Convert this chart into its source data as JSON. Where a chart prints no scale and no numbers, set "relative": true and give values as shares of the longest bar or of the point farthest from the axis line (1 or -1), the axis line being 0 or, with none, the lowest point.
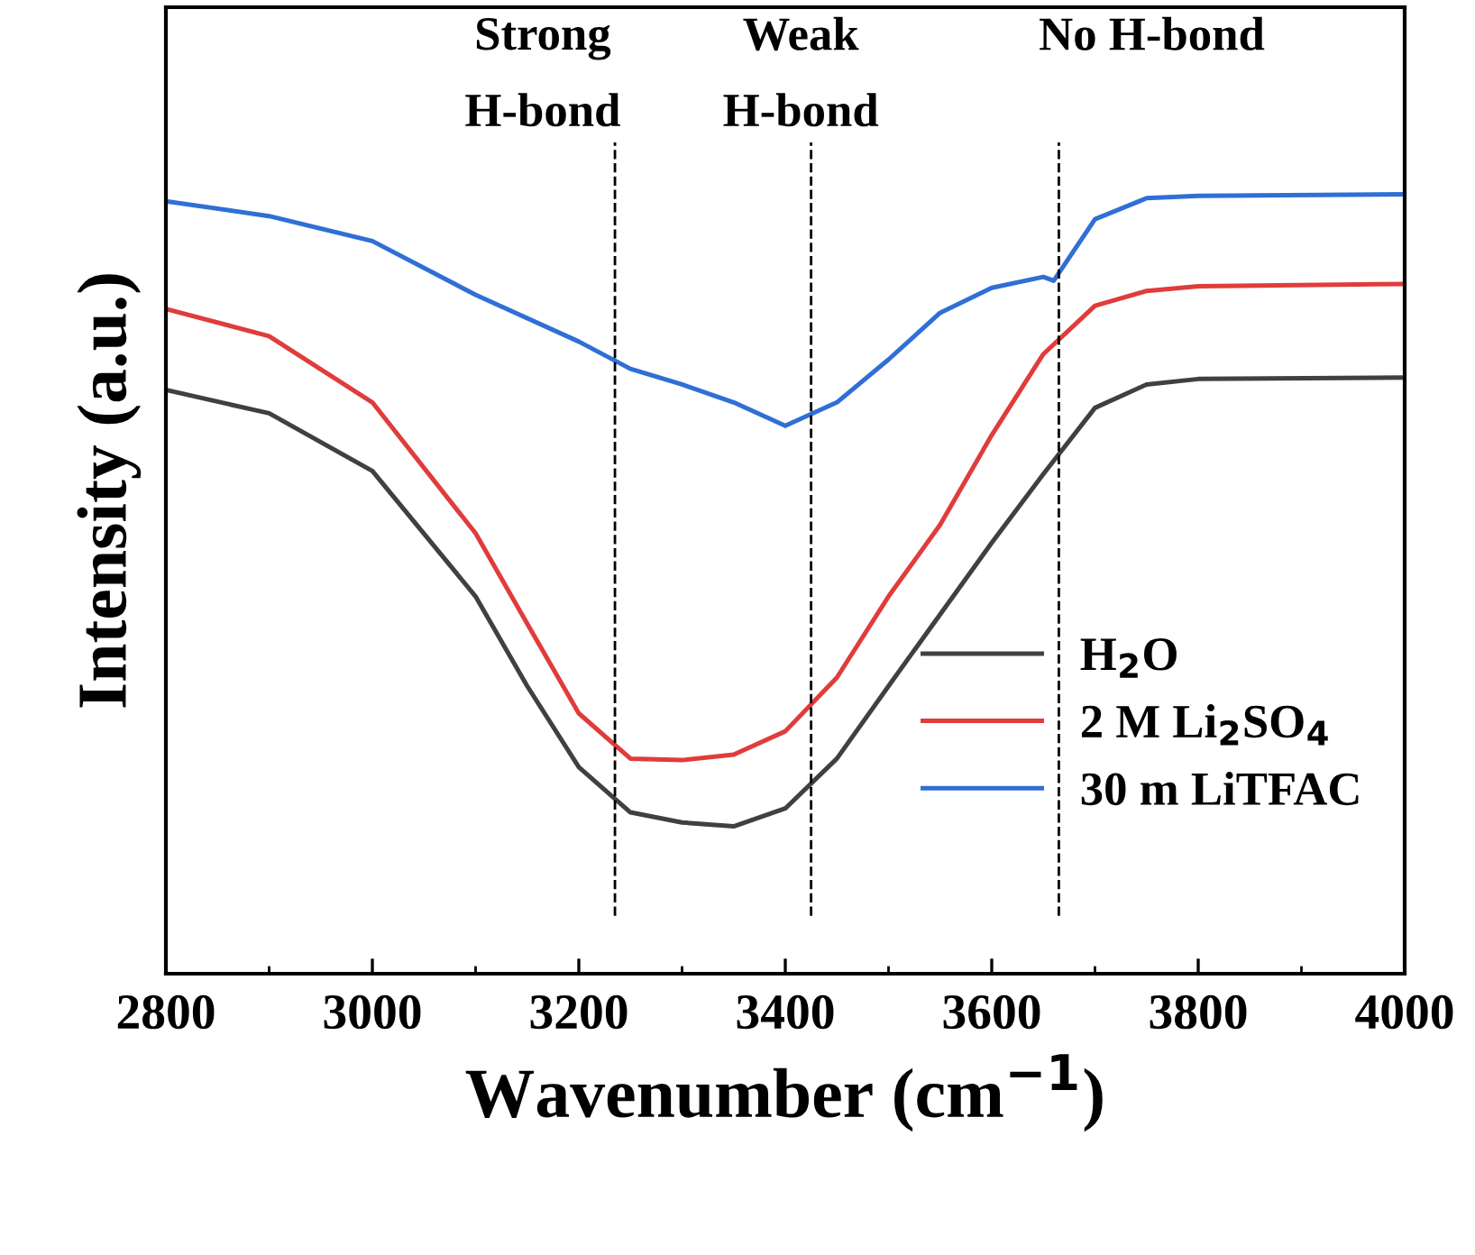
{
  "chart_data": {
    "type": "line",
    "xlabel": "Wavenumber (cm$^{−1}$)",
    "ylabel": "Intensity (a.u.)",
    "relative": true,
    "x": [
      2800,
      2900,
      3000,
      3100,
      3150,
      3200,
      3250,
      3300,
      3350,
      3400,
      3450,
      3500,
      3600,
      3650,
      3700,
      3750,
      3800,
      4000
    ],
    "xlim": [
      2800,
      4000
    ],
    "xticks": [
      2800,
      3000,
      3200,
      3400,
      3600,
      3800,
      4000
    ],
    "legend": "bottom right",
    "grid": false,
    "marker": "none",
    "line_style": "solid",
    "series": [
      {
        "name": "H$_{2}$O",
        "color": "#404040",
        "values": [
          0.749,
          0.719,
          0.645,
          0.484,
          0.369,
          0.265,
          0.207,
          0.194,
          0.189,
          0.212,
          0.276,
          0.369,
          0.553,
          0.641,
          0.726,
          0.756,
          0.763,
          0.765
        ]
      },
      {
        "name": "2 M Li$_{2}$SO$_{4}$",
        "color": "#e03c3c",
        "x": [
          2800,
          2900,
          3000,
          3100,
          3150,
          3200,
          3250,
          3300,
          3350,
          3400,
          3450,
          3500,
          3550,
          3600,
          3650,
          3700,
          3750,
          3800,
          4000
        ],
        "values": [
          0.853,
          0.818,
          0.733,
          0.565,
          0.449,
          0.334,
          0.276,
          0.274,
          0.281,
          0.311,
          0.38,
          0.484,
          0.576,
          0.691,
          0.795,
          0.857,
          0.876,
          0.882,
          0.885
        ]
      },
      {
        "name": "30 m LiTFAC",
        "color": "#2f6fd6",
        "x": [
          2800,
          2900,
          3000,
          3100,
          3200,
          3250,
          3300,
          3350,
          3400,
          3450,
          3500,
          3550,
          3600,
          3650,
          3660,
          3700,
          3750,
          3800,
          4000
        ],
        "values": [
          0.991,
          0.972,
          0.94,
          0.871,
          0.811,
          0.776,
          0.756,
          0.733,
          0.703,
          0.733,
          0.788,
          0.848,
          0.88,
          0.894,
          0.889,
          0.968,
          0.995,
          0.998,
          1.0
        ]
      }
    ],
    "ref_lines": [
      {
        "axis": "x",
        "value": 3235,
        "label": "Strong\nH-bond",
        "color": "#000000",
        "line_style": "dashed"
      },
      {
        "axis": "x",
        "value": 3425,
        "label": "Weak\nH-bond",
        "color": "#000000",
        "line_style": "dashed"
      },
      {
        "axis": "x",
        "value": 3665,
        "label": "No H-bond",
        "color": "#000000",
        "line_style": "dashed"
      }
    ]
  }
}
